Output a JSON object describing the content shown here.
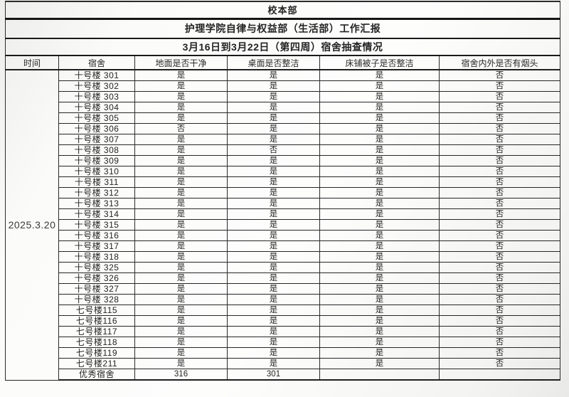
{
  "document": {
    "title_top": "校本部",
    "title_main": "护理学院自律与权益部（生活部）工作汇报",
    "title_sub": "3月16日到3月22日（第四周）宿舍抽查情况"
  },
  "table": {
    "columns": [
      "时间",
      "宿舍",
      "地面是否干净",
      "桌面是否整洁",
      "床铺被子是否整洁",
      "宿舍内外是否有烟头"
    ],
    "date": "2025.3.20",
    "rows": [
      {
        "label": "十号楼 301",
        "values": [
          "是",
          "是",
          "是",
          "否"
        ]
      },
      {
        "label": "十号楼 302",
        "values": [
          "是",
          "是",
          "是",
          "否"
        ]
      },
      {
        "label": "十号楼 303",
        "values": [
          "是",
          "是",
          "是",
          "否"
        ]
      },
      {
        "label": "十号楼 304",
        "values": [
          "是",
          "是",
          "是",
          "否"
        ]
      },
      {
        "label": "十号楼 305",
        "values": [
          "是",
          "是",
          "是",
          "否"
        ]
      },
      {
        "label": "十号楼 306",
        "values": [
          "否",
          "是",
          "是",
          "否"
        ]
      },
      {
        "label": "十号楼 307",
        "values": [
          "是",
          "是",
          "是",
          "否"
        ]
      },
      {
        "label": "十号楼 308",
        "values": [
          "是",
          "否",
          "是",
          "否"
        ]
      },
      {
        "label": "十号楼 309",
        "values": [
          "是",
          "是",
          "是",
          "否"
        ]
      },
      {
        "label": "十号楼 310",
        "values": [
          "是",
          "是",
          "是",
          "否"
        ]
      },
      {
        "label": "十号楼 311",
        "values": [
          "是",
          "是",
          "是",
          "否"
        ]
      },
      {
        "label": "十号楼 312",
        "values": [
          "是",
          "是",
          "是",
          "否"
        ]
      },
      {
        "label": "十号楼 313",
        "values": [
          "是",
          "是",
          "是",
          "否"
        ]
      },
      {
        "label": "十号楼 314",
        "values": [
          "是",
          "是",
          "是",
          "否"
        ]
      },
      {
        "label": "十号楼 315",
        "values": [
          "是",
          "是",
          "是",
          "否"
        ]
      },
      {
        "label": "十号楼 316",
        "values": [
          "是",
          "是",
          "是",
          "否"
        ]
      },
      {
        "label": "十号楼 317",
        "values": [
          "是",
          "是",
          "是",
          "否"
        ]
      },
      {
        "label": "十号楼 318",
        "values": [
          "是",
          "是",
          "是",
          "否"
        ]
      },
      {
        "label": "十号楼 325",
        "values": [
          "是",
          "是",
          "是",
          "否"
        ]
      },
      {
        "label": "十号楼 326",
        "values": [
          "是",
          "是",
          "是",
          "否"
        ]
      },
      {
        "label": "十号楼 327",
        "values": [
          "是",
          "是",
          "是",
          "否"
        ]
      },
      {
        "label": "十号楼 328",
        "values": [
          "是",
          "是",
          "是",
          "否"
        ]
      },
      {
        "label": "七号楼115",
        "values": [
          "是",
          "是",
          "是",
          "否"
        ]
      },
      {
        "label": "七号楼116",
        "values": [
          "是",
          "是",
          "是",
          "否"
        ]
      },
      {
        "label": "七号楼117",
        "values": [
          "是",
          "是",
          "是",
          "否"
        ]
      },
      {
        "label": "七号楼118",
        "values": [
          "是",
          "是",
          "是",
          "否"
        ]
      },
      {
        "label": "七号楼119",
        "values": [
          "是",
          "是",
          "是",
          "否"
        ]
      },
      {
        "label": "七号楼211",
        "values": [
          "是",
          "是",
          "是",
          "否"
        ]
      },
      {
        "label": "优秀宿舍",
        "values": [
          "316",
          "301",
          "",
          ""
        ]
      }
    ]
  }
}
